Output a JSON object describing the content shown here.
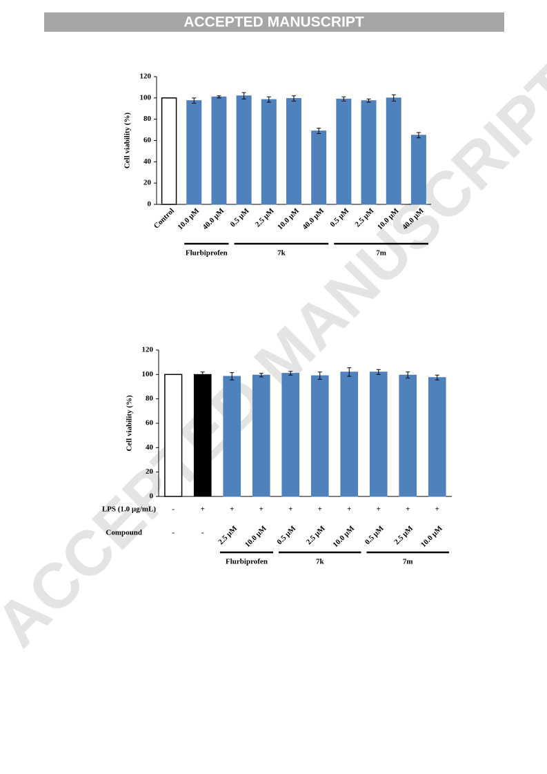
{
  "header": {
    "title": "ACCEPTED MANUSCRIPT"
  },
  "watermark": "ACCEPTED MANUSCRIPT",
  "chart_data": [
    {
      "type": "bar",
      "y_label": "Cell viability (%)",
      "categories": [
        "Control",
        "10.0 μM",
        "40.0 μM",
        "0.5 μM",
        "2.5 μM",
        "10.0 μM",
        "40.0 μM",
        "0.5 μM",
        "2.5 μM",
        "10.0 μM",
        "40.0 μM"
      ],
      "values": [
        100,
        97.5,
        101,
        102,
        98.5,
        99.5,
        69,
        99,
        97.5,
        100,
        65
      ],
      "errors": [
        0,
        2.5,
        1,
        3,
        2.5,
        2.5,
        2.5,
        2,
        1.5,
        3,
        2.5
      ],
      "colors": [
        "#ffffff",
        "#4f81bd",
        "#4f81bd",
        "#4f81bd",
        "#4f81bd",
        "#4f81bd",
        "#4f81bd",
        "#4f81bd",
        "#4f81bd",
        "#4f81bd",
        "#4f81bd"
      ],
      "groups": [
        {
          "name": "Flurbiprofen",
          "from": 1,
          "to": 2
        },
        {
          "name": "7k",
          "from": 3,
          "to": 6
        },
        {
          "name": "7m",
          "from": 7,
          "to": 10
        }
      ],
      "ylim": [
        0,
        120
      ],
      "yticks": [
        0,
        20,
        40,
        60,
        80,
        100,
        120
      ]
    },
    {
      "type": "bar",
      "y_label": "Cell viability (%)",
      "row_labels": [
        "LPS (1.0 µg/mL)",
        "Compound"
      ],
      "lps": [
        "-",
        "+",
        "+",
        "+",
        "+",
        "+",
        "+",
        "+",
        "+",
        "+"
      ],
      "categories": [
        "-",
        "-",
        "2.5 μM",
        "10.0 μM",
        "0.5 μM",
        "2.5 μM",
        "10.0 μM",
        "0.5 μM",
        "2.5 μM",
        "10.0 μM"
      ],
      "values": [
        100,
        100,
        98.5,
        99.5,
        101,
        99,
        102,
        102,
        99.5,
        97.5
      ],
      "errors": [
        0,
        2,
        3,
        1.5,
        1.5,
        3,
        3.5,
        2,
        2.5,
        2
      ],
      "colors": [
        "#ffffff",
        "#000000",
        "#4f81bd",
        "#4f81bd",
        "#4f81bd",
        "#4f81bd",
        "#4f81bd",
        "#4f81bd",
        "#4f81bd",
        "#4f81bd"
      ],
      "groups": [
        {
          "name": "Flurbiprofen",
          "from": 2,
          "to": 3
        },
        {
          "name": "7k",
          "from": 4,
          "to": 6
        },
        {
          "name": "7m",
          "from": 7,
          "to": 9
        }
      ],
      "ylim": [
        0,
        120
      ],
      "yticks": [
        0,
        20,
        40,
        60,
        80,
        100,
        120
      ]
    }
  ]
}
